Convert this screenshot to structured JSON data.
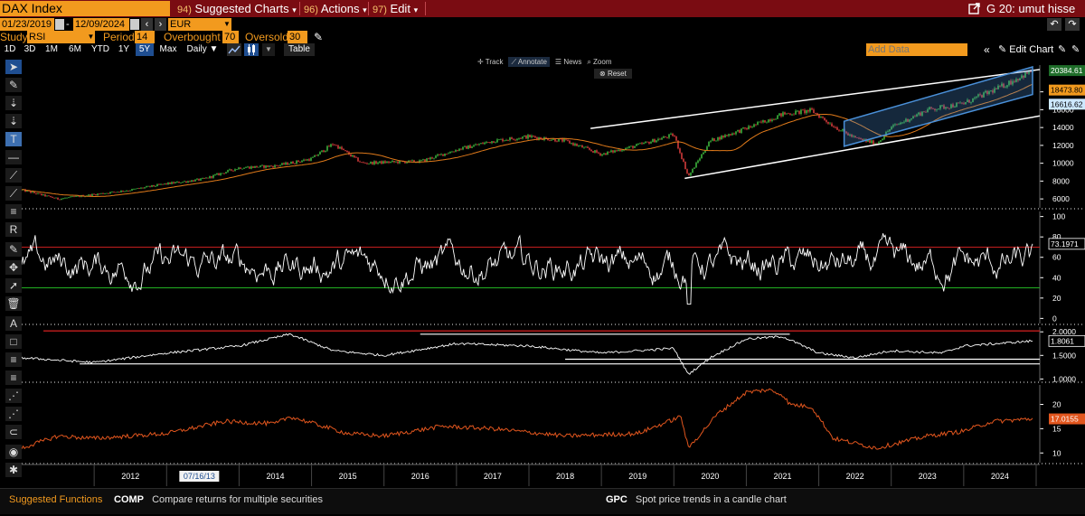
{
  "header": {
    "security": "DAX Index",
    "menus": [
      {
        "num": "94)",
        "label": "Suggested Charts",
        "caret": "▾"
      },
      {
        "num": "96)",
        "label": "Actions",
        "caret": "▾"
      },
      {
        "num": "97)",
        "label": "Edit",
        "caret": "▾"
      }
    ],
    "right_title": "G 20: umut hisse",
    "undo_icon": "undo-icon",
    "redo_icon": "redo-icon"
  },
  "range": {
    "start": "01/23/2019",
    "end": "12/09/2024",
    "currency": "EUR"
  },
  "study": {
    "label": "Study",
    "value": "RSI",
    "period_label": "Period",
    "period_value": "14",
    "overbought_label": "Overbought",
    "overbought_value": "70",
    "oversold_label": "Oversold",
    "oversold_value": "30"
  },
  "toolbar": {
    "periods": [
      "1D",
      "3D",
      "1M",
      "6M",
      "YTD",
      "1Y",
      "5Y",
      "Max"
    ],
    "selected_period": "5Y",
    "frequency": "Daily ▼",
    "table_label": "Table",
    "add_data_placeholder": "Add Data",
    "edit_chart": "Edit Chart"
  },
  "chart_controls": {
    "track": "Track",
    "annotate": "Annotate",
    "news": "News",
    "zoom": "Zoom",
    "reset": "Reset"
  },
  "colors": {
    "amber": "#f29a1e",
    "title_bar": "#7a0c12",
    "candle_up": "#3cb33c",
    "candle_down": "#d23a3a",
    "moving_average": "#e07a1a",
    "overbought_line": "#c41e1e",
    "oversold_line": "#22b022",
    "ratio_line": "#ffffff",
    "vol_line": "#e2561e",
    "channel": "#4a90d9"
  },
  "chart_data": [
    {
      "type": "line",
      "name": "price",
      "x_label": "year",
      "y_ticks": [
        6000,
        8000,
        10000,
        12000,
        14000,
        16000,
        18000
      ],
      "ylim": [
        5000,
        21000
      ],
      "x": [
        2011.0,
        2011.5,
        2012.0,
        2012.5,
        2013.0,
        2013.5,
        2014.0,
        2014.5,
        2015.0,
        2015.3,
        2015.7,
        2016.0,
        2016.5,
        2017.0,
        2017.5,
        2018.0,
        2018.5,
        2019.0,
        2019.5,
        2020.0,
        2020.2,
        2020.5,
        2021.0,
        2021.5,
        2021.9,
        2022.2,
        2022.5,
        2022.8,
        2023.0,
        2023.5,
        2024.0,
        2024.5,
        2024.95
      ],
      "values": [
        7000,
        6000,
        6500,
        7000,
        7700,
        8200,
        9500,
        9700,
        10500,
        12200,
        10000,
        10100,
        10200,
        11500,
        12500,
        13000,
        12500,
        11000,
        12000,
        13200,
        8500,
        12500,
        13900,
        15500,
        15900,
        14200,
        12800,
        12200,
        14000,
        16000,
        16700,
        18500,
        20384
      ],
      "last_labels": [
        "20384.61",
        "18473.80",
        "16616.62"
      ],
      "moving_average_last": 18473.8
    },
    {
      "type": "line",
      "name": "RSI",
      "y_ticks": [
        0,
        20,
        40,
        60,
        80,
        100
      ],
      "ylim": [
        -5,
        105
      ],
      "overbought": 70,
      "oversold": 30,
      "last_label": "73.1971"
    },
    {
      "type": "line",
      "name": "ratio",
      "y_ticks": [
        "1.0000",
        "1.5000",
        "2.0000"
      ],
      "ylim": [
        0.95,
        2.1
      ],
      "x": [
        2011.0,
        2011.5,
        2012.0,
        2013.0,
        2014.0,
        2014.7,
        2015.3,
        2016.0,
        2017.0,
        2018.0,
        2019.0,
        2020.0,
        2020.2,
        2020.5,
        2021.0,
        2021.5,
        2022.0,
        2022.5,
        2023.0,
        2023.7,
        2024.0,
        2024.95
      ],
      "values": [
        1.45,
        1.4,
        1.35,
        1.55,
        1.7,
        1.95,
        1.6,
        1.5,
        1.75,
        1.7,
        1.55,
        1.65,
        1.1,
        1.45,
        1.85,
        1.9,
        1.55,
        1.45,
        1.6,
        1.55,
        1.7,
        1.8061
      ],
      "last_label": "1.8061"
    },
    {
      "type": "line",
      "name": "volatility",
      "y_ticks": [
        10,
        15,
        20
      ],
      "ylim": [
        8,
        24
      ],
      "x": [
        2011.0,
        2011.5,
        2012.0,
        2013.0,
        2013.8,
        2014.5,
        2014.7,
        2015.5,
        2016.0,
        2016.8,
        2017.5,
        2018.5,
        2019.5,
        2020.1,
        2020.2,
        2020.6,
        2021.0,
        2021.3,
        2021.5,
        2021.6,
        2021.9,
        2022.2,
        2022.8,
        2023.5,
        2024.0,
        2024.4,
        2024.95
      ],
      "values": [
        11.0,
        13.5,
        13.0,
        14.0,
        16.5,
        16.0,
        17.5,
        14.0,
        13.5,
        15.5,
        15.0,
        13.5,
        14.0,
        17.5,
        11.0,
        18.0,
        22.5,
        23.0,
        22.0,
        20.0,
        19.5,
        13.0,
        11.0,
        13.5,
        14.5,
        16.5,
        17.0155
      ],
      "last_label": "17.0155"
    }
  ],
  "x_axis": {
    "years": [
      "2012",
      "2014",
      "2015",
      "2016",
      "2017",
      "2018",
      "2019",
      "2020",
      "2021",
      "2022",
      "2023",
      "2024"
    ],
    "highlighted_date": "07/16/13"
  },
  "left_labels": {
    "tools": [
      "cursor-tool",
      "pencil-tool",
      "percent-tool",
      "dollar-tool",
      "text-tool",
      "line-tool",
      "trendline-tool",
      "ray-tool",
      "channel-tool",
      "regression-tool"
    ],
    "lower_tools": [
      "pencil-tool",
      "move-tool",
      "select-tool",
      "trash-tool",
      "font-tool",
      "rectangle-tool",
      "horizontal-line-tool",
      "list-tool",
      "dotted-line-tool",
      "measure-tool",
      "magnet-tool",
      "color-tool",
      "settings-tool"
    ]
  },
  "footer": {
    "suggested": "Suggested Functions",
    "items": [
      {
        "code": "COMP",
        "desc": "Compare returns for multiple securities"
      },
      {
        "code": "GPC",
        "desc": "Spot price trends in a candle chart"
      }
    ]
  }
}
